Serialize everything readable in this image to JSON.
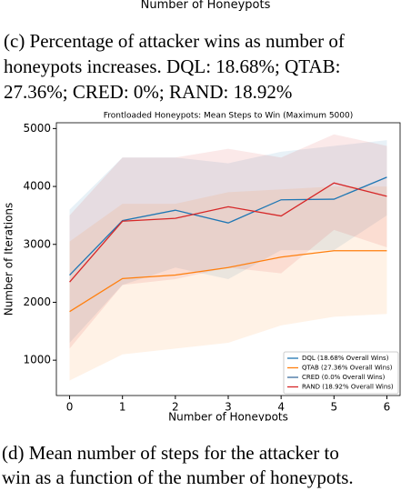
{
  "top_fragment": "Number of Honeypots",
  "caption_c": [
    "(c) Percentage of attacker wins as number of",
    "honeypots increases.  DQL: 18.68%; QTAB:",
    "27.36%; CRED: 0%; RAND: 18.92%"
  ],
  "chart_data": {
    "type": "line",
    "title": "Frontloaded Honeypots: Mean Steps to Win (Maximum 5000)",
    "xlabel": "Number of Honeypots",
    "ylabel": "Number of Iterations",
    "x": [
      0,
      1,
      2,
      3,
      4,
      5,
      6
    ],
    "xlim": [
      -0.25,
      6.25
    ],
    "xticks": [
      0,
      1,
      2,
      3,
      4,
      5,
      6
    ],
    "ylim": [
      390,
      5100
    ],
    "yticks": [
      1000,
      2000,
      3000,
      4000,
      5000
    ],
    "legend": "lower right",
    "series": [
      {
        "name": "DQL (18.68% Overall Wins)",
        "color": "#1f77b4",
        "values": [
          2470,
          3410,
          3590,
          3370,
          3770,
          3780,
          4160
        ],
        "lower": [
          1300,
          2300,
          2600,
          2400,
          2900,
          2900,
          3500
        ],
        "upper": [
          3600,
          4500,
          4500,
          4400,
          4600,
          4700,
          4800
        ]
      },
      {
        "name": "QTAB (27.36% Overall Wins)",
        "color": "#ff7f0e",
        "values": [
          1840,
          2410,
          2470,
          2600,
          2780,
          2890,
          2890
        ],
        "lower": [
          650,
          1100,
          1200,
          1300,
          1600,
          1750,
          1800
        ],
        "upper": [
          3050,
          3700,
          3700,
          3900,
          3950,
          4000,
          4000
        ]
      },
      {
        "name": "CRED (0.0% Overall Wins)",
        "color": "#3d6e9e",
        "values": [
          null,
          null,
          null,
          null,
          null,
          null,
          null
        ]
      },
      {
        "name": "RAND (18.92% Overall Wins)",
        "color": "#d62728",
        "values": [
          2350,
          3400,
          3450,
          3650,
          3490,
          4060,
          3830
        ],
        "lower": [
          1200,
          2300,
          2400,
          2600,
          2500,
          3250,
          2950
        ],
        "upper": [
          3500,
          4500,
          4500,
          4650,
          4500,
          4900,
          4700
        ]
      }
    ]
  },
  "caption_d": [
    "(d) Mean number of steps for the attacker to",
    "win as a function of the number of honeypots."
  ]
}
